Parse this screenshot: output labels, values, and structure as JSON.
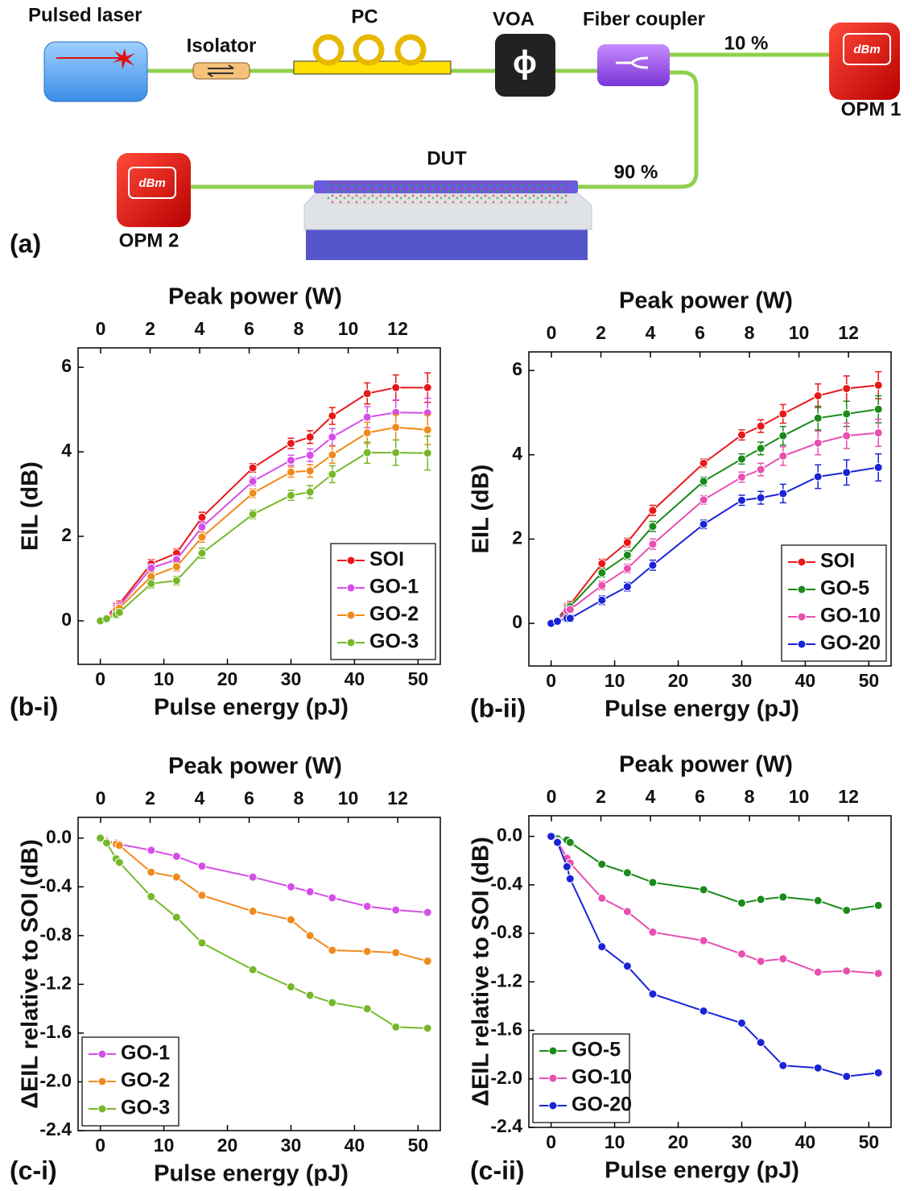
{
  "diagram": {
    "panel_label": "(a)",
    "pulsed_laser": "Pulsed laser",
    "isolator": "Isolator",
    "pc": "PC",
    "voa": "VOA",
    "voa_symbol": "ϕ",
    "fiber_coupler": "Fiber coupler",
    "split_10": "10 %",
    "opm1": "OPM 1",
    "opm1_unit": "dBm",
    "dut": "DUT",
    "split_90": "90 %",
    "opm2": "OPM 2",
    "opm2_unit": "dBm"
  },
  "chart_data": [
    {
      "type": "line",
      "panel_label": "(b-i)",
      "x_label": "Pulse energy (pJ)",
      "x2_label": "Peak power (W)",
      "y_label": "EIL (dB)",
      "x": [
        0,
        1,
        2.5,
        3,
        8,
        12,
        16,
        24,
        30,
        33,
        36.5,
        42,
        46.5,
        51.5
      ],
      "series": [
        {
          "name": "SOI",
          "color": "#e8191a",
          "values": [
            0,
            0.1,
            0.35,
            0.4,
            1.35,
            1.6,
            2.45,
            3.62,
            4.2,
            4.35,
            4.85,
            5.38,
            5.52,
            5.52
          ],
          "errors": [
            0.03,
            0.05,
            0.08,
            0.08,
            0.1,
            0.1,
            0.12,
            0.1,
            0.12,
            0.15,
            0.2,
            0.25,
            0.3,
            0.35
          ]
        },
        {
          "name": "GO-1",
          "color": "#d54ee8",
          "values": [
            0,
            0.08,
            0.3,
            0.35,
            1.25,
            1.45,
            2.22,
            3.3,
            3.8,
            3.92,
            4.35,
            4.82,
            4.93,
            4.92
          ],
          "errors": [
            0.03,
            0.05,
            0.08,
            0.08,
            0.1,
            0.1,
            0.12,
            0.1,
            0.12,
            0.15,
            0.2,
            0.25,
            0.3,
            0.35
          ]
        },
        {
          "name": "GO-2",
          "color": "#f08a1c",
          "values": [
            0,
            0.06,
            0.25,
            0.3,
            1.05,
            1.28,
            1.98,
            3.02,
            3.52,
            3.55,
            3.93,
            4.45,
            4.58,
            4.52
          ],
          "errors": [
            0.03,
            0.05,
            0.08,
            0.08,
            0.1,
            0.1,
            0.12,
            0.1,
            0.12,
            0.15,
            0.2,
            0.25,
            0.3,
            0.35
          ]
        },
        {
          "name": "GO-3",
          "color": "#76b82a",
          "values": [
            0,
            0.05,
            0.15,
            0.2,
            0.88,
            0.95,
            1.6,
            2.52,
            2.97,
            3.05,
            3.47,
            3.98,
            3.98,
            3.97
          ],
          "errors": [
            0.03,
            0.05,
            0.08,
            0.08,
            0.1,
            0.1,
            0.12,
            0.1,
            0.12,
            0.15,
            0.2,
            0.25,
            0.3,
            0.4
          ]
        }
      ],
      "xlim": [
        -3.5,
        53.5
      ],
      "xticks": [
        0,
        10,
        20,
        30,
        40,
        50
      ],
      "x2lim": [
        -0.91,
        13.72
      ],
      "x2ticks": [
        0,
        2,
        4,
        6,
        8,
        10,
        12
      ],
      "ylim": [
        -1.03,
        6.46
      ],
      "yticks": [
        0,
        2,
        4,
        6
      ],
      "legend_loc": "lower right"
    },
    {
      "type": "line",
      "panel_label": "(b-ii)",
      "x_label": "Pulse energy (pJ)",
      "x2_label": "Peak power (W)",
      "y_label": "EIL (dB)",
      "x": [
        0,
        1,
        2.5,
        3,
        8,
        12,
        16,
        24,
        30,
        33,
        36.5,
        42,
        46.5,
        51.5
      ],
      "series": [
        {
          "name": "SOI",
          "color": "#e8191a",
          "values": [
            0,
            0.1,
            0.4,
            0.45,
            1.42,
            1.92,
            2.68,
            3.8,
            4.47,
            4.68,
            4.97,
            5.4,
            5.57,
            5.65
          ],
          "errors": [
            0.03,
            0.05,
            0.08,
            0.08,
            0.1,
            0.1,
            0.12,
            0.1,
            0.12,
            0.15,
            0.22,
            0.28,
            0.3,
            0.32
          ]
        },
        {
          "name": "GO-5",
          "color": "#1a8a1a",
          "values": [
            0,
            0.08,
            0.35,
            0.4,
            1.2,
            1.62,
            2.3,
            3.37,
            3.9,
            4.15,
            4.45,
            4.87,
            4.97,
            5.08
          ],
          "errors": [
            0.03,
            0.05,
            0.08,
            0.08,
            0.1,
            0.1,
            0.12,
            0.1,
            0.12,
            0.15,
            0.22,
            0.28,
            0.3,
            0.32
          ]
        },
        {
          "name": "GO-10",
          "color": "#e84fb0",
          "values": [
            0,
            0.06,
            0.3,
            0.33,
            0.9,
            1.3,
            1.88,
            2.93,
            3.47,
            3.65,
            3.97,
            4.28,
            4.45,
            4.52
          ],
          "errors": [
            0.03,
            0.05,
            0.08,
            0.08,
            0.1,
            0.1,
            0.12,
            0.1,
            0.12,
            0.15,
            0.22,
            0.28,
            0.3,
            0.32
          ]
        },
        {
          "name": "GO-20",
          "color": "#1a24d6",
          "values": [
            0,
            0.05,
            0.12,
            0.12,
            0.55,
            0.87,
            1.38,
            2.35,
            2.92,
            2.98,
            3.08,
            3.48,
            3.58,
            3.7
          ],
          "errors": [
            0.03,
            0.05,
            0.08,
            0.08,
            0.1,
            0.1,
            0.12,
            0.1,
            0.12,
            0.15,
            0.22,
            0.28,
            0.3,
            0.32
          ]
        }
      ],
      "xlim": [
        -3.5,
        53.5
      ],
      "xticks": [
        0,
        10,
        20,
        30,
        40,
        50
      ],
      "x2lim": [
        -0.91,
        13.72
      ],
      "x2ticks": [
        0,
        2,
        4,
        6,
        8,
        10,
        12
      ],
      "ylim": [
        -1.01,
        6.44
      ],
      "yticks": [
        0,
        2,
        4,
        6
      ],
      "legend_loc": "lower right"
    },
    {
      "type": "line",
      "panel_label": "(c-i)",
      "x_label": "Pulse energy (pJ)",
      "x2_label": "Peak power (W)",
      "y_label": "ΔEIL relative to SOI (dB)",
      "x": [
        0,
        1,
        2.5,
        3,
        8,
        12,
        16,
        24,
        30,
        33,
        36.5,
        42,
        46.5,
        51.5
      ],
      "series": [
        {
          "name": "GO-1",
          "color": "#d54ee8",
          "values": [
            0,
            -0.02,
            -0.04,
            -0.05,
            -0.1,
            -0.15,
            -0.23,
            -0.32,
            -0.4,
            -0.44,
            -0.49,
            -0.56,
            -0.59,
            -0.61
          ]
        },
        {
          "name": "GO-2",
          "color": "#f08a1c",
          "values": [
            0,
            -0.03,
            -0.05,
            -0.06,
            -0.28,
            -0.32,
            -0.47,
            -0.6,
            -0.67,
            -0.8,
            -0.92,
            -0.93,
            -0.94,
            -1.01
          ]
        },
        {
          "name": "GO-3",
          "color": "#76b82a",
          "values": [
            0,
            -0.04,
            -0.17,
            -0.2,
            -0.48,
            -0.65,
            -0.86,
            -1.08,
            -1.22,
            -1.29,
            -1.35,
            -1.4,
            -1.55,
            -1.56
          ]
        }
      ],
      "xlim": [
        -3.5,
        53.5
      ],
      "xticks": [
        0,
        10,
        20,
        30,
        40,
        50
      ],
      "x2lim": [
        -0.91,
        13.72
      ],
      "x2ticks": [
        0,
        2,
        4,
        6,
        8,
        10,
        12
      ],
      "ylim": [
        -2.4,
        0.17
      ],
      "yticks": [
        {
          "value": 0,
          "label": "0.0"
        },
        -0.4,
        -0.8,
        -1.2,
        -1.6,
        {
          "value": -2,
          "label": "-2.0"
        },
        -2.4
      ],
      "legend_loc": "lower left"
    },
    {
      "type": "line",
      "panel_label": "(c-ii)",
      "x_label": "Pulse energy (pJ)",
      "x2_label": "Peak power (W)",
      "y_label": "ΔEIL relative to SOI (dB)",
      "x": [
        0,
        1,
        2.5,
        3,
        8,
        12,
        16,
        24,
        30,
        33,
        36.5,
        42,
        46.5,
        51.5
      ],
      "series": [
        {
          "name": "GO-5",
          "color": "#1a8a1a",
          "values": [
            0,
            -0.02,
            -0.03,
            -0.05,
            -0.23,
            -0.3,
            -0.38,
            -0.44,
            -0.55,
            -0.52,
            -0.5,
            -0.53,
            -0.61,
            -0.57
          ]
        },
        {
          "name": "GO-10",
          "color": "#e84fb0",
          "values": [
            0,
            -0.04,
            -0.18,
            -0.22,
            -0.51,
            -0.62,
            -0.79,
            -0.86,
            -0.97,
            -1.03,
            -1.01,
            -1.12,
            -1.11,
            -1.13
          ]
        },
        {
          "name": "GO-20",
          "color": "#1a24d6",
          "values": [
            0,
            -0.05,
            -0.25,
            -0.35,
            -0.91,
            -1.07,
            -1.3,
            -1.44,
            -1.54,
            -1.7,
            -1.89,
            -1.91,
            -1.98,
            -1.95
          ]
        }
      ],
      "xlim": [
        -3.5,
        53.5
      ],
      "xticks": [
        0,
        10,
        20,
        30,
        40,
        50
      ],
      "x2lim": [
        -0.91,
        13.72
      ],
      "x2ticks": [
        0,
        2,
        4,
        6,
        8,
        10,
        12
      ],
      "ylim": [
        -2.4,
        0.17
      ],
      "yticks": [
        {
          "value": 0,
          "label": "0.0"
        },
        -0.4,
        -0.8,
        -1.2,
        -1.6,
        {
          "value": -2,
          "label": "-2.0"
        },
        -2.4
      ],
      "legend_loc": "lower left"
    }
  ]
}
